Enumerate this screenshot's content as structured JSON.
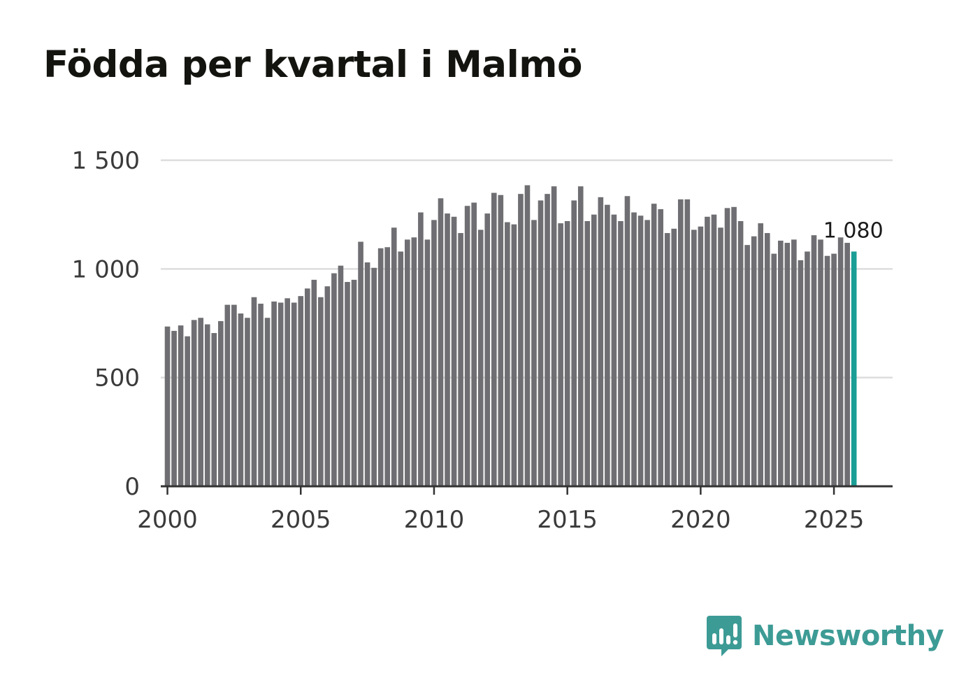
{
  "title": "Födda per kvartal i Malmö",
  "brand": {
    "name": "Newsworthy",
    "icon": "newsworthy-logo-icon"
  },
  "colors": {
    "bar": "#6f6f73",
    "highlight": "#1a9e96",
    "grid": "#dddddd",
    "axis": "#333333",
    "brand": "#3d9b95"
  },
  "chart_data": {
    "type": "bar",
    "title": "Födda per kvartal i Malmö",
    "xlabel": "",
    "ylabel": "",
    "ylim": [
      0,
      1500
    ],
    "xlim": [
      1999.75,
      2027.2
    ],
    "yticks": [
      {
        "value": 0,
        "label": "0"
      },
      {
        "value": 500,
        "label": "500"
      },
      {
        "value": 1000,
        "label": "1 000"
      },
      {
        "value": 1500,
        "label": "1 500"
      }
    ],
    "xticks": [
      {
        "value": 2000,
        "label": "2000"
      },
      {
        "value": 2005,
        "label": "2005"
      },
      {
        "value": 2010,
        "label": "2010"
      },
      {
        "value": 2015,
        "label": "2015"
      },
      {
        "value": 2020,
        "label": "2020"
      },
      {
        "value": 2025,
        "label": "2025"
      }
    ],
    "start_year": 2000,
    "periods_per_year": 4,
    "values": [
      735,
      715,
      740,
      690,
      765,
      775,
      745,
      705,
      760,
      835,
      835,
      795,
      775,
      870,
      840,
      775,
      850,
      845,
      865,
      845,
      875,
      910,
      950,
      870,
      920,
      980,
      1015,
      940,
      950,
      1125,
      1030,
      1005,
      1095,
      1100,
      1190,
      1080,
      1135,
      1145,
      1260,
      1135,
      1225,
      1325,
      1255,
      1240,
      1165,
      1290,
      1305,
      1180,
      1255,
      1350,
      1340,
      1215,
      1205,
      1345,
      1385,
      1225,
      1315,
      1345,
      1380,
      1210,
      1220,
      1315,
      1380,
      1220,
      1250,
      1330,
      1295,
      1250,
      1220,
      1335,
      1260,
      1245,
      1225,
      1300,
      1275,
      1165,
      1185,
      1320,
      1320,
      1180,
      1195,
      1240,
      1250,
      1190,
      1280,
      1285,
      1220,
      1110,
      1150,
      1210,
      1165,
      1070,
      1130,
      1120,
      1135,
      1040,
      1080,
      1155,
      1135,
      1060,
      1070,
      1145,
      1120,
      1080
    ],
    "highlight_index": 103,
    "highlight_label": "1 080"
  }
}
